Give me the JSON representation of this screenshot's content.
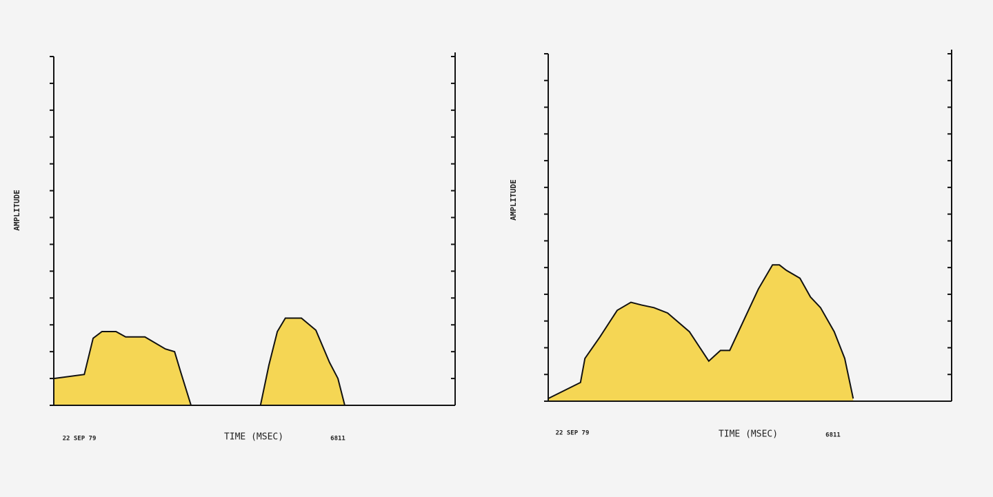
{
  "chart_data": [
    {
      "type": "area",
      "y_label": "AMPLITUDE",
      "x_label": "TIME (MSEC)",
      "date": "22 SEP 79",
      "code": "6811",
      "color": "#f5d654",
      "x": [
        0,
        7.6,
        9.8,
        12,
        15.5,
        17.9,
        22.7,
        27.8,
        30.1,
        31.6,
        34.2,
        51.5,
        53.6,
        55.7,
        57.7,
        61.7,
        65.3,
        68.7,
        70.8,
        72.5
      ],
      "values": [
        1.0,
        1.15,
        2.5,
        2.75,
        2.75,
        2.55,
        2.55,
        2.1,
        2.0,
        1.25,
        0,
        0,
        1.5,
        2.75,
        3.25,
        3.25,
        2.8,
        1.6,
        1.0,
        0
      ],
      "xlim": [
        0,
        100
      ],
      "ylim": [
        0,
        13
      ],
      "yticks": [
        0,
        1,
        2,
        3,
        4,
        5,
        6,
        7,
        8,
        9,
        10,
        11,
        12,
        13
      ]
    },
    {
      "type": "area",
      "y_label": "AMPLITUDE",
      "x_label": "TIME (MSEC)",
      "date": "22 SEP 79",
      "code": "6811",
      "color": "#f5d654",
      "x": [
        0,
        8.0,
        9.1,
        12.8,
        17.1,
        20.5,
        23.1,
        26.2,
        29.6,
        35.0,
        39.8,
        42.7,
        45.0,
        48.7,
        52.1,
        55.6,
        57.3,
        59.0,
        62.4,
        65.0,
        67.5,
        70.9,
        73.5,
        75.6
      ],
      "values": [
        0.1,
        0.7,
        1.6,
        2.4,
        3.4,
        3.7,
        3.6,
        3.5,
        3.3,
        2.6,
        1.5,
        1.9,
        1.9,
        3.1,
        4.2,
        5.1,
        5.1,
        4.9,
        4.6,
        3.9,
        3.5,
        2.6,
        1.6,
        0.1
      ],
      "xlim": [
        0,
        100
      ],
      "ylim": [
        0,
        13
      ],
      "yticks": [
        0,
        1,
        2,
        3,
        4,
        5,
        6,
        7,
        8,
        9,
        10,
        11,
        12,
        13
      ]
    }
  ]
}
